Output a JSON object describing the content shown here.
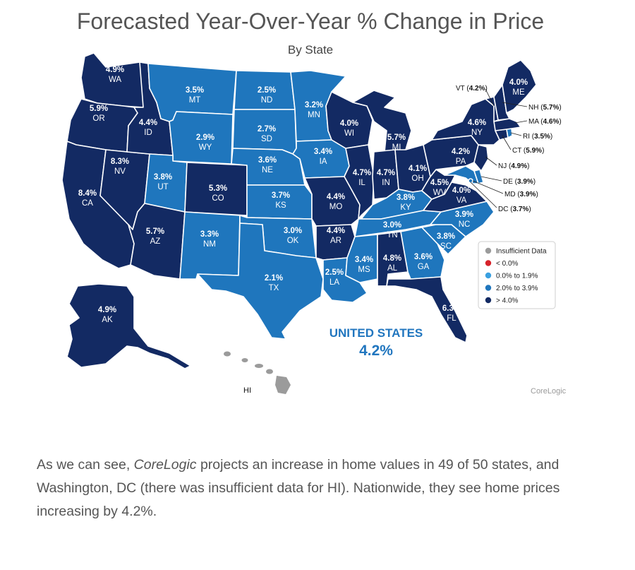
{
  "title": "Forecasted Year-Over-Year % Change in Price",
  "subtitle": "By State",
  "colors": {
    "insufficient": "#9b9b9b",
    "negative": "#d7222a",
    "low": "#3aa0e0",
    "mid": "#1f76bd",
    "high": "#132a63"
  },
  "legend": [
    {
      "key": "insufficient",
      "label": "Insufficient Data"
    },
    {
      "key": "negative",
      "label": "< 0.0%"
    },
    {
      "key": "low",
      "label": "0.0% to 1.9%"
    },
    {
      "key": "mid",
      "label": "2.0% to 3.9%"
    },
    {
      "key": "high",
      "label": "> 4.0%"
    }
  ],
  "national": {
    "label": "UNITED STATES",
    "value": "4.2%"
  },
  "credit": "CoreLogic",
  "hawaii_label": "HI",
  "states": {
    "WA": {
      "value": "4.9%",
      "category": "high"
    },
    "OR": {
      "value": "5.9%",
      "category": "high"
    },
    "CA": {
      "value": "8.4%",
      "category": "high"
    },
    "NV": {
      "value": "8.3%",
      "category": "high"
    },
    "ID": {
      "value": "4.4%",
      "category": "high"
    },
    "MT": {
      "value": "3.5%",
      "category": "mid"
    },
    "WY": {
      "value": "2.9%",
      "category": "mid"
    },
    "UT": {
      "value": "3.8%",
      "category": "mid"
    },
    "AZ": {
      "value": "5.7%",
      "category": "high"
    },
    "CO": {
      "value": "5.3%",
      "category": "high"
    },
    "NM": {
      "value": "3.3%",
      "category": "mid"
    },
    "ND": {
      "value": "2.5%",
      "category": "mid"
    },
    "SD": {
      "value": "2.7%",
      "category": "mid"
    },
    "NE": {
      "value": "3.6%",
      "category": "mid"
    },
    "KS": {
      "value": "3.7%",
      "category": "mid"
    },
    "OK": {
      "value": "3.0%",
      "category": "mid"
    },
    "TX": {
      "value": "2.1%",
      "category": "mid"
    },
    "MN": {
      "value": "3.2%",
      "category": "mid"
    },
    "IA": {
      "value": "3.4%",
      "category": "mid"
    },
    "MO": {
      "value": "4.4%",
      "category": "high"
    },
    "AR": {
      "value": "4.4%",
      "category": "high"
    },
    "LA": {
      "value": "2.5%",
      "category": "mid"
    },
    "WI": {
      "value": "4.0%",
      "category": "high"
    },
    "IL": {
      "value": "4.7%",
      "category": "high"
    },
    "MI": {
      "value": "5.7%",
      "category": "high"
    },
    "IN": {
      "value": "4.7%",
      "category": "high"
    },
    "OH": {
      "value": "4.1%",
      "category": "high"
    },
    "KY": {
      "value": "3.8%",
      "category": "mid"
    },
    "TN": {
      "value": "3.0%",
      "category": "mid"
    },
    "MS": {
      "value": "3.4%",
      "category": "mid"
    },
    "AL": {
      "value": "4.8%",
      "category": "high"
    },
    "GA": {
      "value": "3.6%",
      "category": "mid"
    },
    "FL": {
      "value": "6.3%",
      "category": "high"
    },
    "SC": {
      "value": "3.8%",
      "category": "mid"
    },
    "NC": {
      "value": "3.9%",
      "category": "mid"
    },
    "VA": {
      "value": "4.0%",
      "category": "high"
    },
    "WV": {
      "value": "4.5%",
      "category": "high"
    },
    "PA": {
      "value": "4.2%",
      "category": "high"
    },
    "NY": {
      "value": "4.6%",
      "category": "high"
    },
    "ME": {
      "value": "4.0%",
      "category": "high"
    },
    "VT": {
      "value": "4.2%",
      "category": "high"
    },
    "NH": {
      "value": "5.7%",
      "category": "high"
    },
    "MA": {
      "value": "4.6%",
      "category": "high"
    },
    "RI": {
      "value": "3.5%",
      "category": "mid"
    },
    "CT": {
      "value": "5.9%",
      "category": "high"
    },
    "NJ": {
      "value": "4.9%",
      "category": "high"
    },
    "DE": {
      "value": "3.9%",
      "category": "mid"
    },
    "MD": {
      "value": "3.9%",
      "category": "mid"
    },
    "DC": {
      "value": "3.7%",
      "category": "mid"
    },
    "AK": {
      "value": "4.9%",
      "category": "high"
    },
    "HI": {
      "category": "insufficient"
    }
  },
  "caption": {
    "part1": "As we can see, ",
    "emphasis": "CoreLogic",
    "part2": " projects an increase in home values in 49 of 50 states, and Washington, DC (there was insufficient data for HI). Nationwide, they see home prices increasing by 4.2%."
  }
}
